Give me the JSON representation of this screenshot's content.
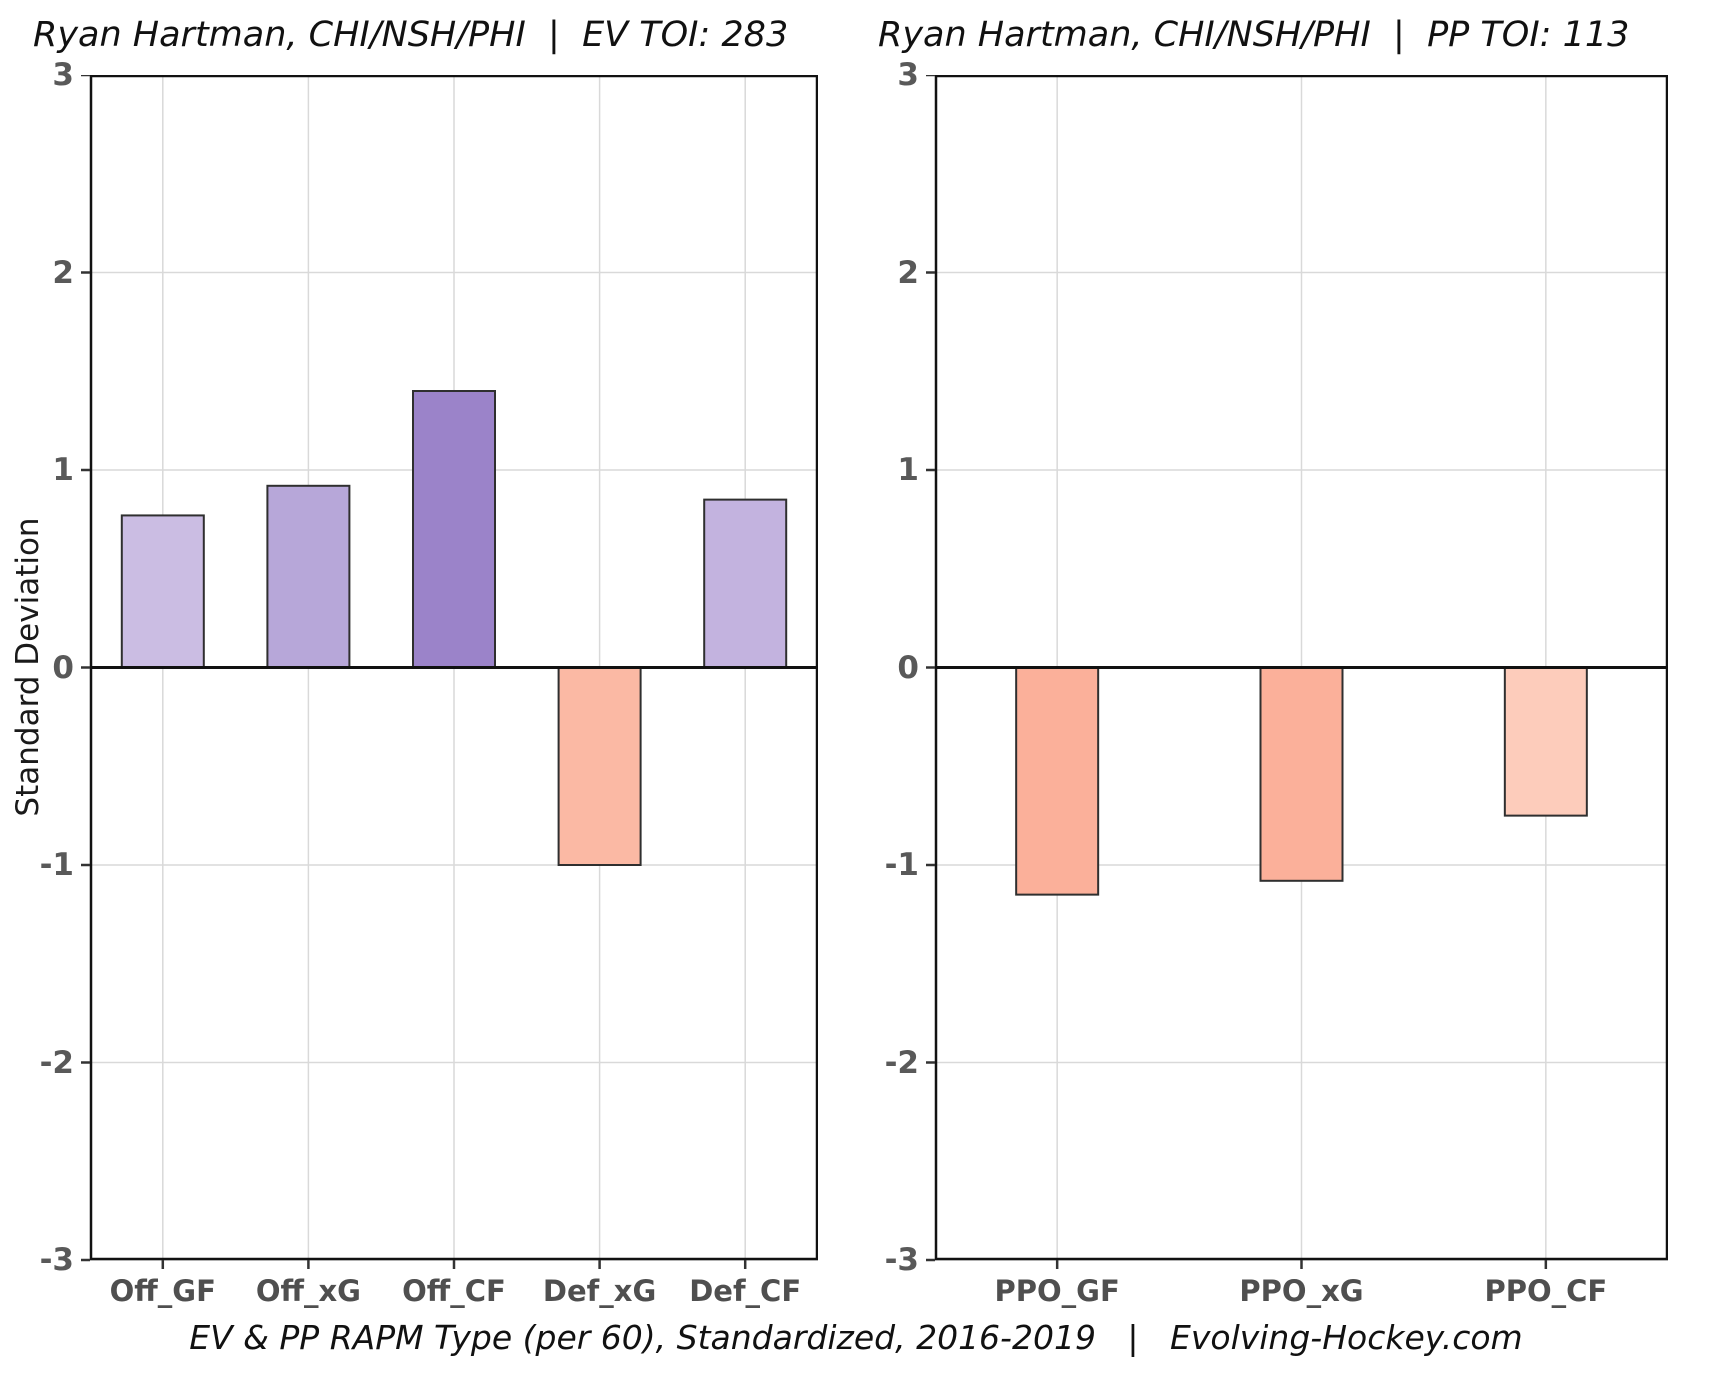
{
  "page": {
    "caption": "EV & PP RAPM Type (per 60), Standardized, 2016-2019   |   Evolving-Hockey.com",
    "background": "#ffffff"
  },
  "chart_data": [
    {
      "type": "bar",
      "title": "Ryan Hartman, CHI/NSH/PHI  |  EV TOI: 283",
      "ylabel": "Standard Deviation",
      "xlabel": "",
      "categories": [
        "Off_GF",
        "Off_xG",
        "Off_CF",
        "Def_xG",
        "Def_CF"
      ],
      "values": [
        0.77,
        0.92,
        1.4,
        -1.0,
        0.85
      ],
      "bar_colors": [
        "#cbbde3",
        "#b7a7d9",
        "#9b83c9",
        "#fbb9a4",
        "#c3b3df"
      ],
      "ylim": [
        -3,
        3
      ],
      "yticks": [
        3,
        2,
        1,
        0,
        -1,
        -2,
        -3
      ],
      "grid": true,
      "legend": "none"
    },
    {
      "type": "bar",
      "title": "Ryan Hartman, CHI/NSH/PHI  |  PP TOI: 113",
      "ylabel": "",
      "xlabel": "",
      "categories": [
        "PPO_GF",
        "PPO_xG",
        "PPO_CF"
      ],
      "values": [
        -1.15,
        -1.08,
        -0.75
      ],
      "bar_colors": [
        "#fbb09a",
        "#fbb09a",
        "#fdccbb"
      ],
      "ylim": [
        -3,
        3
      ],
      "yticks": [
        3,
        2,
        1,
        0,
        -1,
        -2,
        -3
      ],
      "grid": true,
      "legend": "none"
    }
  ],
  "style": {
    "grid_color": "#d9d9d9",
    "axis_border_color": "#111111",
    "zero_line_color": "#111111",
    "tick_mark_color": "#333333",
    "bar_stroke_color": "#2f2f2f",
    "tick_label_color": "#595959",
    "title_color": "#111111"
  }
}
